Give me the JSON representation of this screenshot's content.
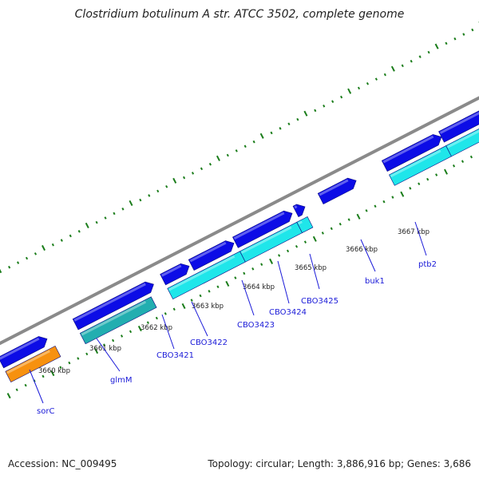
{
  "title": "Clostridium botulinum A str. ATCC 3502, complete genome",
  "footer": {
    "accession": "Accession: NC_009495",
    "topology": "Topology: circular; Length: 3,886,916 bp; Genes: 3,686"
  },
  "colors": {
    "backbone": "#8a8a8a",
    "forward_gene": "#0c0ce6",
    "reverse_gene": "#1fe6ea",
    "reverse_gene_dark": "#22aeb0",
    "highlight_gene": "#f7910f",
    "ticks": "#1b7d1b",
    "labels": "#1a1ad8"
  },
  "scale_labels": [
    "3660 kbp",
    "3661 kbp",
    "3662 kbp",
    "3663 kbp",
    "3664 kbp",
    "3665 kbp",
    "3666 kbp",
    "3667 kbp"
  ],
  "gene_labels": [
    "sorC",
    "glmM",
    "CBO3421",
    "CBO3422",
    "CBO3423",
    "CBO3424",
    "CBO3425",
    "buk1",
    "ptb2"
  ]
}
